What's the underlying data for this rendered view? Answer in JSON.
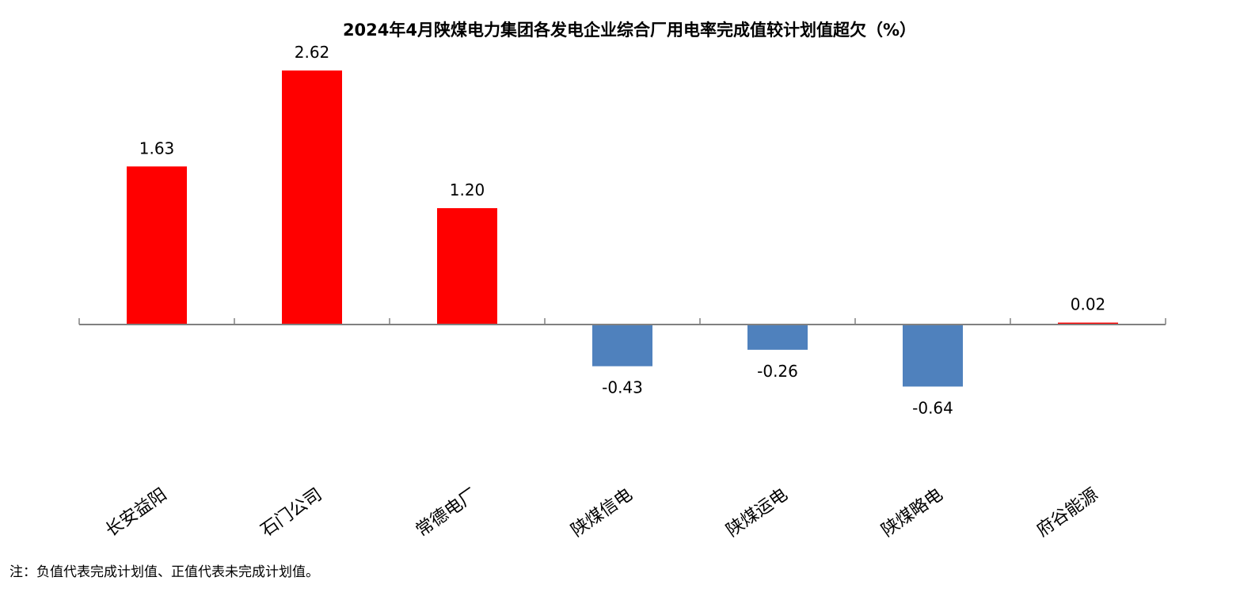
{
  "chart_data": {
    "type": "bar",
    "title": "2024年4月陕煤电力集团各发电企业综合厂用电率完成值较计划值超欠（%）",
    "categories": [
      "长安益阳",
      "石门公司",
      "常德电厂",
      "陕煤信电",
      "陕煤运电",
      "陕煤略电",
      "府谷能源"
    ],
    "values": [
      1.63,
      2.62,
      1.2,
      -0.43,
      -0.26,
      -0.64,
      0.02
    ],
    "data_labels": [
      "1.63",
      "2.62",
      "1.20",
      "-0.43",
      "-0.26",
      "-0.64",
      "0.02"
    ],
    "xlabel": "",
    "ylabel": "",
    "ylim": [
      -1.28,
      2.95
    ],
    "grid": false,
    "legend": "none",
    "colors": {
      "positive": "#FF0000",
      "negative": "#4F81BD",
      "axis": "#808080",
      "text": "#000000"
    }
  },
  "note": "注：负值代表完成计划值、正值代表未完成计划值。"
}
